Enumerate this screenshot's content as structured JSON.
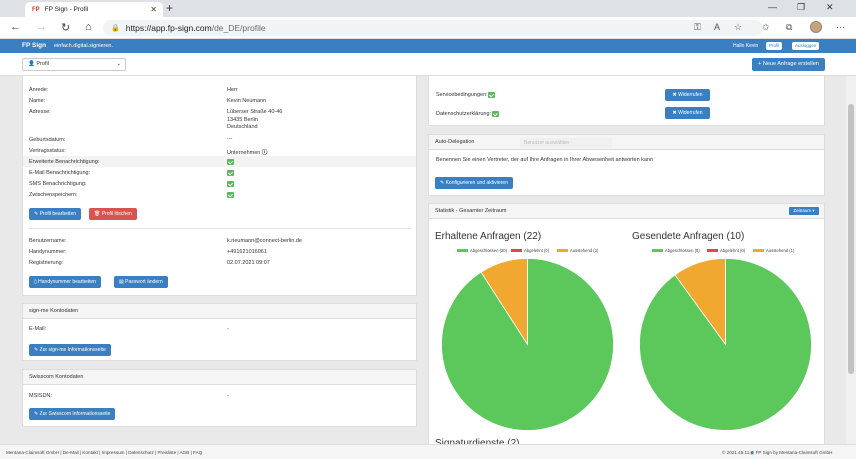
{
  "browser": {
    "tab_title": "FP Sign - Profil",
    "tab_favicon": "FP",
    "url_host": "https://app.fp-sign.com",
    "url_path": "/de_DE/profile"
  },
  "app": {
    "logo": "FP Sign",
    "tagline": "einfach.digital.signieren.",
    "greeting": "Hallo Kevin",
    "profile_btn": "Profil",
    "logout_btn": "Ausloggen",
    "profile_select": "Profil",
    "new_request_btn": "+ Neue Anfrage erstellen"
  },
  "profile": {
    "fields": [
      {
        "label": "Anrede:",
        "value": "Herr"
      },
      {
        "label": "Name:",
        "value": "Kevin Neumann"
      },
      {
        "label": "Adresse:",
        "value_lines": [
          "Lüberser Straße 40-46",
          "13435 Berlin",
          "Deutschland"
        ]
      },
      {
        "label": "Geburtsdatum:",
        "value": "---"
      },
      {
        "label": "Vertragsstatus:",
        "value": "Unternehmen"
      }
    ],
    "toggles": [
      {
        "label": "Erweiterte Benachrichtigung:",
        "checked": true
      },
      {
        "label": "E-Mail Benachrichtigung:",
        "checked": true
      },
      {
        "label": "SMS Benachrichtigung:",
        "checked": true
      },
      {
        "label": "Zwischenspeichern:",
        "checked": true
      }
    ],
    "edit_btn": "Profil bearbeiten",
    "delete_btn": "Profil löschen",
    "account_fields": [
      {
        "label": "Benutzername:",
        "value": "k.neumann@connect-berlin.de"
      },
      {
        "label": "Handynummer:",
        "value": "+491621016061"
      },
      {
        "label": "Registrierung:",
        "value": "02.07.2021 09:07"
      }
    ],
    "phone_btn": "Handynummer bearbeiten",
    "password_btn": "Passwort ändern"
  },
  "signme": {
    "title": "sign-me Kontodaten",
    "email_label": "E-Mail:",
    "email_value": "-",
    "btn": "Zur sign-me Informationsseite"
  },
  "swisscom": {
    "title": "Swisscom Kontodaten",
    "msisdn_label": "MSISDN:",
    "msisdn_value": "-",
    "btn": "Zur Swisscom Informationsseite"
  },
  "terms": {
    "service_label": "Servicebedingungen:",
    "privacy_label": "Datenschutzerklärung:",
    "revoke_btn": "Widerrufen"
  },
  "delegation": {
    "title": "Auto-Delegation",
    "select_placeholder": "Benutzer auswählen",
    "description": "Benennen Sie einen Vertreter, der auf Ihre Anfragen in Ihrer Abwesenheit antworten kann",
    "btn": "Konfigurieren und aktivieren"
  },
  "stats": {
    "title": "Statistik - Gesamter Zeitraum",
    "range_btn": "Zeitraum",
    "next_title": "Signaturdienste (2)"
  },
  "chart_data": [
    {
      "type": "pie",
      "title": "Erhaltene Anfragen (22)",
      "categories": [
        "Abgeschlossen (20)",
        "Abgelehnt (0)",
        "Ausstehend (2)"
      ],
      "values": [
        20,
        0,
        2
      ],
      "colors": [
        "#5cc85c",
        "#e04848",
        "#f0a830"
      ]
    },
    {
      "type": "pie",
      "title": "Gesendete Anfragen (10)",
      "categories": [
        "Abgeschlossen (9)",
        "Abgelehnt (0)",
        "Ausstehend (1)"
      ],
      "values": [
        9,
        0,
        1
      ],
      "colors": [
        "#5cc85c",
        "#e04848",
        "#f0a830"
      ]
    }
  ],
  "footer": {
    "links": "Mentana-Claimsoft GmbH | De-Mail | Kontakt | Impressum | Datenschutz | Preisliste | AGB | FAQ",
    "version": "© 2021.45.11.4",
    "brand": "FP Sign by Mentana-Claimsoft GmbH"
  }
}
